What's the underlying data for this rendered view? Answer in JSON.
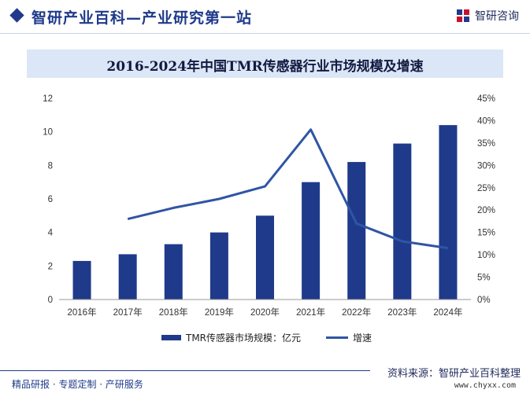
{
  "header": {
    "site_title": "智研产业百科—产业研究第一站",
    "brand": "智研咨询",
    "logo_icon": "zhiyan-logo-icon"
  },
  "chart_data": {
    "type": "bar",
    "title": "2016-2024年中国TMR传感器行业市场规模及增速",
    "categories": [
      "2016年",
      "2017年",
      "2018年",
      "2019年",
      "2020年",
      "2021年",
      "2022年",
      "2023年",
      "2024年"
    ],
    "series": [
      {
        "name": "TMR传感器市场规模：亿元",
        "type": "bar",
        "axis": "left",
        "color": "#1f3a8a",
        "values": [
          2.3,
          2.7,
          3.3,
          4.0,
          5.0,
          7.0,
          8.2,
          9.3,
          10.4
        ]
      },
      {
        "name": "增速",
        "type": "line",
        "axis": "right",
        "color": "#2f55a4",
        "values": [
          null,
          18.0,
          20.5,
          22.5,
          25.3,
          38.0,
          17.0,
          13.0,
          11.5
        ]
      }
    ],
    "y_left": {
      "min": 0,
      "max": 12,
      "ticks": [
        "0",
        "2",
        "4",
        "6",
        "8",
        "10",
        "12"
      ]
    },
    "y_right": {
      "min": 0,
      "max": 45,
      "ticks": [
        "0%",
        "5%",
        "10%",
        "15%",
        "20%",
        "25%",
        "30%",
        "35%",
        "40%",
        "45%"
      ]
    },
    "grid": false,
    "legend_position": "bottom"
  },
  "footer": {
    "tagline": "精品研报 · 专题定制 · 产研服务",
    "source": "资料来源：智研产业百科整理",
    "url": "www.chyxx.com"
  }
}
